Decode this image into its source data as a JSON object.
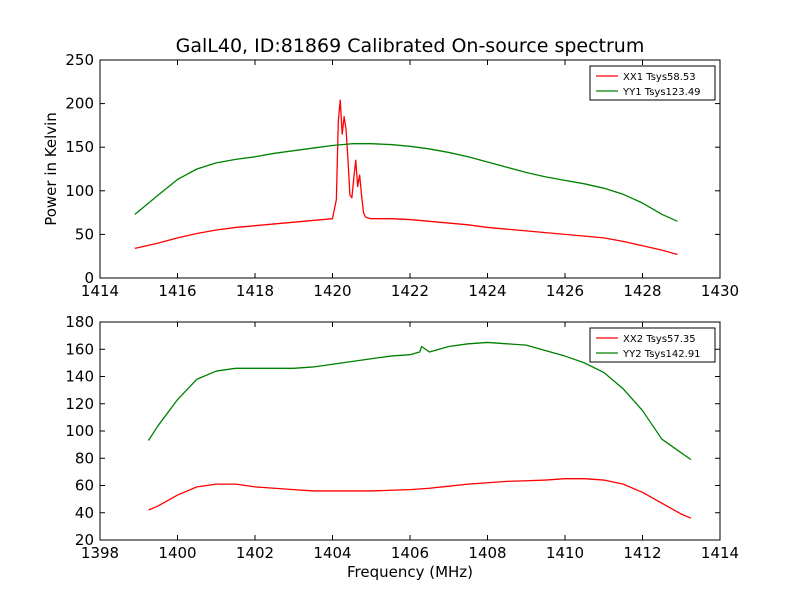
{
  "chart_data": [
    {
      "type": "line",
      "title": "GalL40, ID:81869 Calibrated On-source spectrum",
      "xlabel": "",
      "ylabel": "Power in Kelvin",
      "xlim": [
        1414,
        1430
      ],
      "ylim": [
        0,
        250
      ],
      "xticks": [
        "1414",
        "1416",
        "1418",
        "1420",
        "1422",
        "1424",
        "1426",
        "1428",
        "1430"
      ],
      "yticks": [
        "0",
        "50",
        "100",
        "150",
        "200",
        "250"
      ],
      "legend_position": "top-right",
      "grid": false,
      "series": [
        {
          "name": "XX1 Tsys58.53",
          "color": "#ff0000",
          "x": [
            1414.9,
            1415.5,
            1416.0,
            1416.5,
            1417.0,
            1417.5,
            1418.0,
            1418.5,
            1419.0,
            1419.5,
            1420.0,
            1420.1,
            1420.15,
            1420.2,
            1420.25,
            1420.3,
            1420.35,
            1420.4,
            1420.45,
            1420.5,
            1420.55,
            1420.6,
            1420.65,
            1420.7,
            1420.75,
            1420.8,
            1420.85,
            1420.9,
            1421.0,
            1421.5,
            1422.0,
            1422.5,
            1423.0,
            1423.5,
            1424.0,
            1424.5,
            1425.0,
            1425.5,
            1426.0,
            1426.5,
            1427.0,
            1427.5,
            1428.0,
            1428.5,
            1428.9
          ],
          "y": [
            34,
            40,
            46,
            51,
            55,
            58,
            60,
            62,
            64,
            66,
            68,
            90,
            180,
            204,
            165,
            185,
            170,
            135,
            95,
            92,
            115,
            135,
            105,
            118,
            95,
            75,
            70,
            69,
            68,
            68,
            67,
            65,
            63,
            61,
            58,
            56,
            54,
            52,
            50,
            48,
            46,
            42,
            37,
            32,
            27
          ]
        },
        {
          "name": "YY1 Tsys123.49",
          "color": "#008000",
          "x": [
            1414.9,
            1415.5,
            1416.0,
            1416.5,
            1417.0,
            1417.5,
            1418.0,
            1418.5,
            1419.0,
            1419.5,
            1420.0,
            1420.5,
            1421.0,
            1421.5,
            1422.0,
            1422.5,
            1423.0,
            1423.5,
            1424.0,
            1424.5,
            1425.0,
            1425.5,
            1426.0,
            1426.5,
            1427.0,
            1427.5,
            1428.0,
            1428.5,
            1428.9
          ],
          "y": [
            73,
            95,
            113,
            125,
            132,
            136,
            139,
            143,
            146,
            149,
            152,
            154,
            154,
            153,
            151,
            148,
            144,
            139,
            133,
            127,
            121,
            116,
            112,
            108,
            103,
            96,
            86,
            73,
            65
          ]
        }
      ]
    },
    {
      "type": "line",
      "title": "",
      "xlabel": "Frequency (MHz)",
      "ylabel": "",
      "xlim": [
        1398,
        1414
      ],
      "ylim": [
        20,
        180
      ],
      "xticks": [
        "1398",
        "1400",
        "1402",
        "1404",
        "1406",
        "1408",
        "1410",
        "1412",
        "1414"
      ],
      "yticks": [
        "20",
        "40",
        "60",
        "80",
        "100",
        "120",
        "140",
        "160",
        "180"
      ],
      "legend_position": "top-right",
      "grid": false,
      "series": [
        {
          "name": "XX2 Tsys57.35",
          "color": "#ff0000",
          "x": [
            1399.25,
            1399.5,
            1400.0,
            1400.5,
            1401.0,
            1401.5,
            1402.0,
            1402.5,
            1403.0,
            1403.5,
            1404.0,
            1404.5,
            1405.0,
            1405.5,
            1406.0,
            1406.5,
            1407.0,
            1407.5,
            1408.0,
            1408.5,
            1409.0,
            1409.5,
            1410.0,
            1410.5,
            1411.0,
            1411.5,
            1412.0,
            1412.5,
            1413.0,
            1413.25
          ],
          "y": [
            42,
            45,
            53,
            59,
            61,
            61,
            59,
            58,
            57,
            56,
            56,
            56,
            56,
            56.5,
            57,
            58,
            59.5,
            61,
            62,
            63,
            63.5,
            64,
            65,
            65,
            64,
            61,
            55,
            47,
            39,
            36
          ]
        },
        {
          "name": "YY2 Tsys142.91",
          "color": "#008000",
          "x": [
            1399.25,
            1399.5,
            1400.0,
            1400.5,
            1401.0,
            1401.5,
            1402.0,
            1402.5,
            1403.0,
            1403.5,
            1404.0,
            1404.5,
            1405.0,
            1405.5,
            1406.0,
            1406.25,
            1406.3,
            1406.5,
            1407.0,
            1407.5,
            1408.0,
            1408.5,
            1409.0,
            1409.5,
            1410.0,
            1410.5,
            1411.0,
            1411.5,
            1412.0,
            1412.5,
            1413.0,
            1413.25
          ],
          "y": [
            93,
            104,
            123,
            138,
            144,
            146,
            146,
            146,
            146,
            147,
            149,
            151,
            153,
            155,
            156,
            158,
            162,
            158,
            162,
            164,
            165,
            164,
            163,
            159,
            155,
            150,
            143,
            131,
            115,
            94,
            84,
            79
          ]
        }
      ]
    }
  ]
}
